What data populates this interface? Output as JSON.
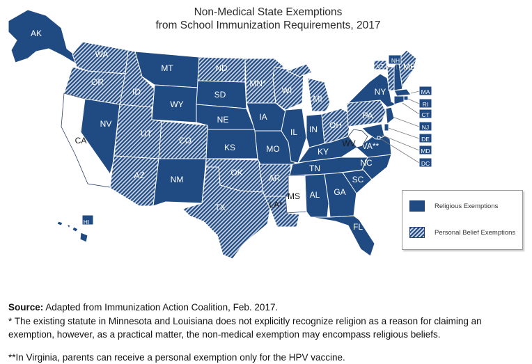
{
  "title_line1": "Non-Medical State Exemptions",
  "title_line2": "from School Immunization Requirements, 2017",
  "colors": {
    "religious": "#1f4a82",
    "hatch_light": "#c9d3e3",
    "none": "#ffffff",
    "border": "#ffffff"
  },
  "legend": {
    "religious_label": "Religious Exemptions",
    "personal_label": "Personal Belief Exemptions"
  },
  "states": [
    {
      "abbr": "AK",
      "category": "religious"
    },
    {
      "abbr": "HI",
      "category": "religious"
    },
    {
      "abbr": "WA",
      "category": "personal"
    },
    {
      "abbr": "OR",
      "category": "personal"
    },
    {
      "abbr": "CA",
      "category": "none"
    },
    {
      "abbr": "NV",
      "category": "religious"
    },
    {
      "abbr": "ID",
      "category": "personal"
    },
    {
      "abbr": "MT",
      "category": "religious"
    },
    {
      "abbr": "WY",
      "category": "religious"
    },
    {
      "abbr": "UT",
      "category": "personal"
    },
    {
      "abbr": "AZ",
      "category": "personal"
    },
    {
      "abbr": "CO",
      "category": "personal"
    },
    {
      "abbr": "NM",
      "category": "religious"
    },
    {
      "abbr": "ND",
      "category": "personal"
    },
    {
      "abbr": "SD",
      "category": "religious"
    },
    {
      "abbr": "NE",
      "category": "religious"
    },
    {
      "abbr": "KS",
      "category": "religious"
    },
    {
      "abbr": "OK",
      "category": "personal"
    },
    {
      "abbr": "TX",
      "category": "personal"
    },
    {
      "abbr": "MN*",
      "category": "personal"
    },
    {
      "abbr": "IA",
      "category": "religious"
    },
    {
      "abbr": "MO",
      "category": "religious"
    },
    {
      "abbr": "AR",
      "category": "personal"
    },
    {
      "abbr": "LA*",
      "category": "personal"
    },
    {
      "abbr": "WI",
      "category": "personal"
    },
    {
      "abbr": "IL",
      "category": "religious"
    },
    {
      "abbr": "MI",
      "category": "personal"
    },
    {
      "abbr": "IN",
      "category": "religious"
    },
    {
      "abbr": "OH",
      "category": "personal"
    },
    {
      "abbr": "KY",
      "category": "religious"
    },
    {
      "abbr": "TN",
      "category": "religious"
    },
    {
      "abbr": "MS",
      "category": "none"
    },
    {
      "abbr": "AL",
      "category": "religious"
    },
    {
      "abbr": "GA",
      "category": "religious"
    },
    {
      "abbr": "FL",
      "category": "religious"
    },
    {
      "abbr": "SC",
      "category": "religious"
    },
    {
      "abbr": "NC",
      "category": "religious"
    },
    {
      "abbr": "VA**",
      "category": "religious"
    },
    {
      "abbr": "WV",
      "category": "none"
    },
    {
      "abbr": "PA",
      "category": "personal"
    },
    {
      "abbr": "NY",
      "category": "religious"
    },
    {
      "abbr": "VT",
      "category": "personal"
    },
    {
      "abbr": "NH",
      "category": "religious"
    },
    {
      "abbr": "ME",
      "category": "personal"
    },
    {
      "abbr": "MA",
      "category": "religious"
    },
    {
      "abbr": "RI",
      "category": "religious"
    },
    {
      "abbr": "CT",
      "category": "religious"
    },
    {
      "abbr": "NJ",
      "category": "religious"
    },
    {
      "abbr": "DE",
      "category": "religious"
    },
    {
      "abbr": "MD",
      "category": "religious"
    },
    {
      "abbr": "DC",
      "category": "religious"
    }
  ],
  "notes": {
    "source_label": "Source:",
    "source_text": " Adapted from Immunization Action Coalition, Feb. 2017.",
    "note1": "* The existing statute in Minnesota and Louisiana does not explicitly recognize religion as a reason for claiming an exemption, however, as a practical matter, the non-medical exemption may encompass religious beliefs.",
    "note2": "**In Virginia, parents can receive a personal exemption only for the HPV vaccine."
  }
}
